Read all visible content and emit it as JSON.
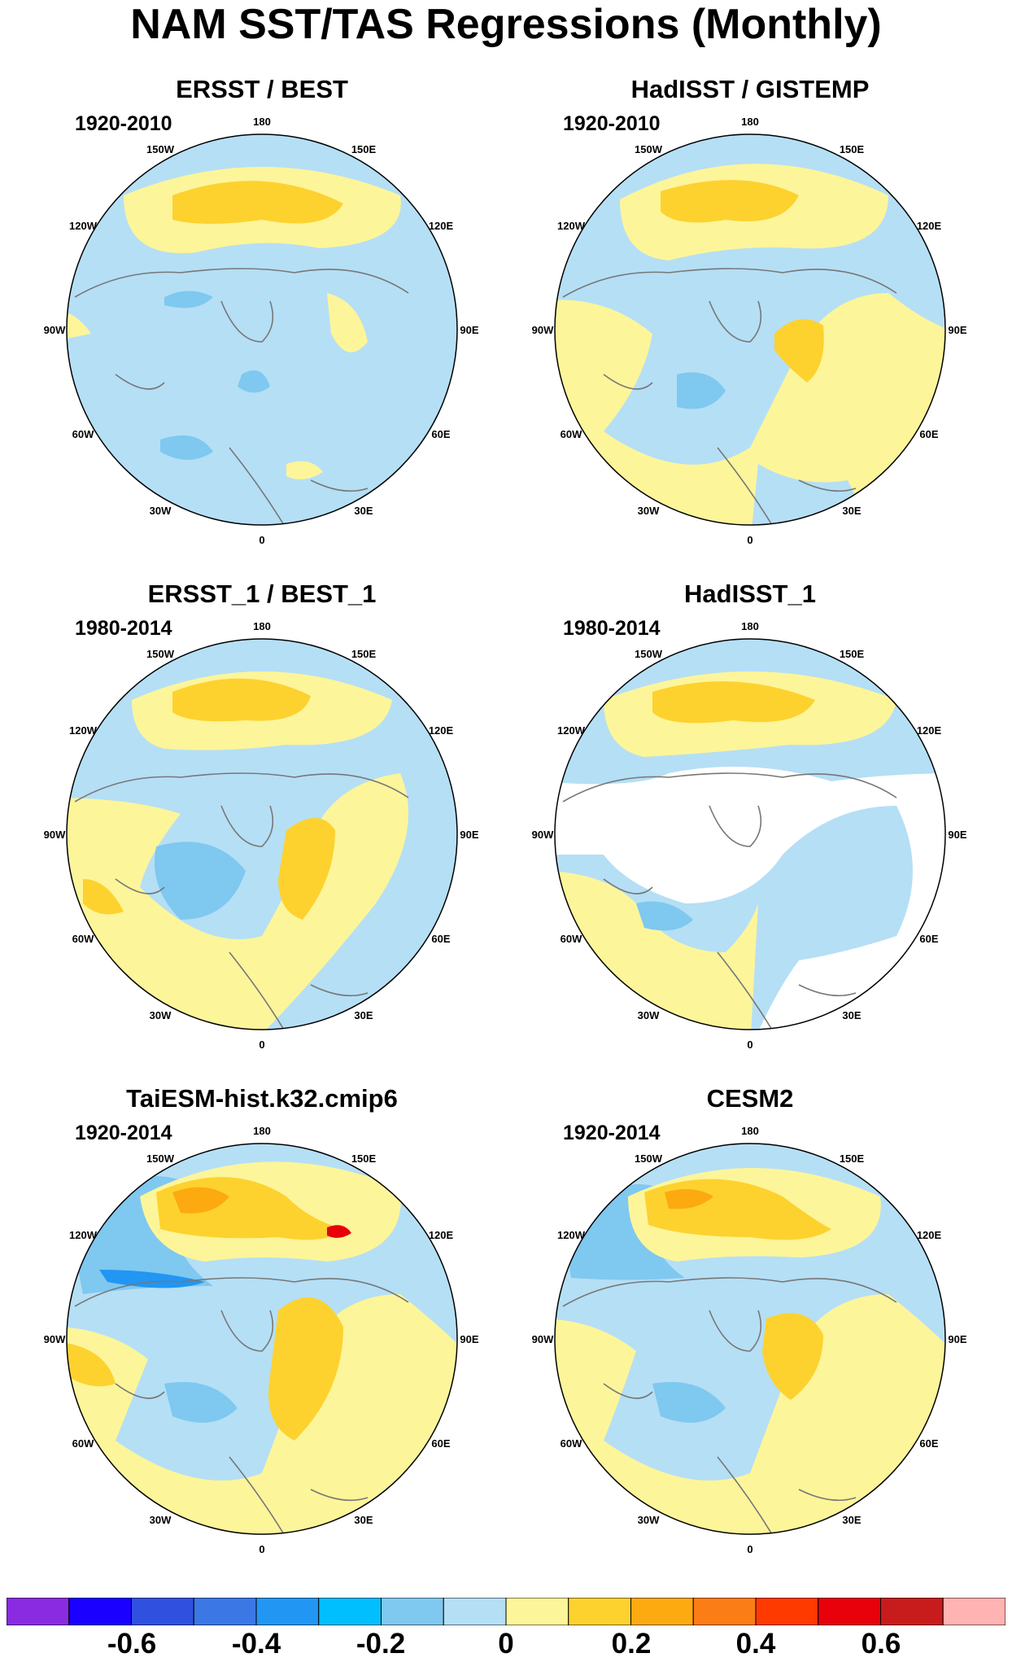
{
  "title": "NAM SST/TAS Regressions (Monthly)",
  "lon_labels": [
    "180",
    "150E",
    "120E",
    "90E",
    "60E",
    "30E",
    "0",
    "30W",
    "60W",
    "90W",
    "120W",
    "150W"
  ],
  "panels": [
    {
      "title": "ERSST / BEST",
      "period": "1920-2010"
    },
    {
      "title": "HadISST / GISTEMP",
      "period": "1920-2010"
    },
    {
      "title": "ERSST_1 / BEST_1",
      "period": "1980-2014"
    },
    {
      "title": "HadISST_1",
      "period": "1980-2014"
    },
    {
      "title": "TaiESM-hist.k32.cmip6",
      "period": "1920-2014"
    },
    {
      "title": "CESM2",
      "period": "1920-2014"
    }
  ],
  "colorbar": {
    "colors": [
      "#8a2be2",
      "#1a00ff",
      "#3050e0",
      "#3b78e6",
      "#2196f3",
      "#00bfff",
      "#7fc8f0",
      "#b5dff5",
      "#fdf59a",
      "#fdd22f",
      "#fcaa10",
      "#fb7d15",
      "#ff3a00",
      "#e8000a",
      "#c81b1b",
      "#ffb3b3"
    ],
    "labels": [
      "-0.6",
      "-0.4",
      "-0.2",
      "0",
      "0.2",
      "0.4",
      "0.6"
    ]
  }
}
